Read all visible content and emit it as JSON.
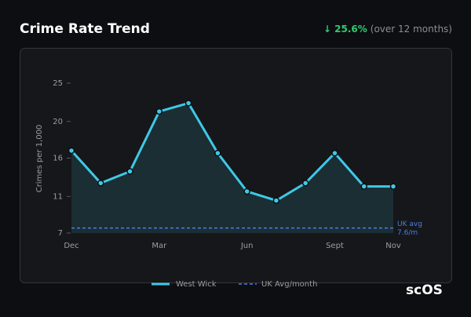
{
  "header": {
    "title": "Crime Rate Trend",
    "change": "↓ 25.6%",
    "change_note": "(over 12 months)"
  },
  "logo": "scOS",
  "chart_data": {
    "type": "line",
    "y_label": "Crimes per 1,000",
    "categories": [
      "Dec",
      null,
      null,
      "Mar",
      null,
      null,
      "Jun",
      null,
      null,
      "Sept",
      null,
      "Nov"
    ],
    "series": [
      {
        "name": "West Wick",
        "color": "#3ec9e6",
        "values": [
          16.9,
          13.0,
          14.4,
          21.6,
          22.6,
          16.6,
          12.0,
          10.9,
          13.0,
          16.6,
          12.6,
          12.6
        ]
      }
    ],
    "reference": {
      "name": "UK Avg/month",
      "value": 7.6,
      "color": "#4a7fe0",
      "label": [
        "UK avg",
        "7.6/m"
      ]
    },
    "ylim": [
      7,
      25
    ],
    "yticks": [
      7,
      {
        "value": 11.4,
        "label": "11"
      },
      16,
      {
        "value": 20.4,
        "label": "20"
      },
      25
    ],
    "grid": false
  }
}
